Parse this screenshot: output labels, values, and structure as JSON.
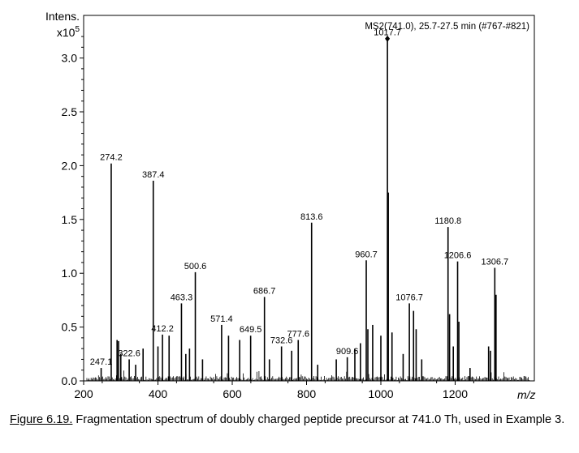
{
  "chart_data": {
    "type": "bar",
    "title": "MS2(741.0), 25.7-27.5 min (#767-#821)",
    "ylabel_line1": "Intens.",
    "ylabel_line2": "x10",
    "ylabel_exponent": "5",
    "xlabel": "m/z",
    "xlim": [
      200,
      1340
    ],
    "ylim": [
      0,
      3.25
    ],
    "x_ticks": [
      200,
      400,
      600,
      800,
      1000,
      1200
    ],
    "y_ticks": [
      0.0,
      0.5,
      1.0,
      1.5,
      2.0,
      2.5,
      3.0
    ],
    "y_tick_labels": [
      "0.0",
      "0.5",
      "1.0",
      "1.5",
      "2.0",
      "2.5",
      "3.0"
    ],
    "grid": false,
    "peaks": [
      {
        "x": 247.1,
        "y": 0.12,
        "label": "247.1"
      },
      {
        "x": 274.2,
        "y": 2.02,
        "label": "274.2"
      },
      {
        "x": 290,
        "y": 0.38
      },
      {
        "x": 294,
        "y": 0.37
      },
      {
        "x": 300,
        "y": 0.25
      },
      {
        "x": 322.6,
        "y": 0.2,
        "label": "322.6"
      },
      {
        "x": 340,
        "y": 0.15
      },
      {
        "x": 360,
        "y": 0.3
      },
      {
        "x": 387.4,
        "y": 1.86,
        "label": "387.4"
      },
      {
        "x": 400,
        "y": 0.32
      },
      {
        "x": 412.2,
        "y": 0.43,
        "label": "412.2"
      },
      {
        "x": 430,
        "y": 0.42
      },
      {
        "x": 463.3,
        "y": 0.72,
        "label": "463.3"
      },
      {
        "x": 475,
        "y": 0.25
      },
      {
        "x": 485,
        "y": 0.3
      },
      {
        "x": 500.6,
        "y": 1.01,
        "label": "500.6"
      },
      {
        "x": 520,
        "y": 0.2
      },
      {
        "x": 571.4,
        "y": 0.52,
        "label": "571.4"
      },
      {
        "x": 590,
        "y": 0.42
      },
      {
        "x": 620,
        "y": 0.38
      },
      {
        "x": 649.5,
        "y": 0.42,
        "label": "649.5"
      },
      {
        "x": 686.7,
        "y": 0.78,
        "label": "686.7"
      },
      {
        "x": 700,
        "y": 0.2
      },
      {
        "x": 732.6,
        "y": 0.32,
        "label": "732.6"
      },
      {
        "x": 760,
        "y": 0.28
      },
      {
        "x": 777.6,
        "y": 0.38,
        "label": "777.6"
      },
      {
        "x": 813.6,
        "y": 1.47,
        "label": "813.6"
      },
      {
        "x": 830,
        "y": 0.15
      },
      {
        "x": 880,
        "y": 0.2
      },
      {
        "x": 909.6,
        "y": 0.22,
        "label": "909.6"
      },
      {
        "x": 930,
        "y": 0.3
      },
      {
        "x": 945,
        "y": 0.35
      },
      {
        "x": 960.7,
        "y": 1.12,
        "label": "960.7"
      },
      {
        "x": 965,
        "y": 0.48
      },
      {
        "x": 978,
        "y": 0.52
      },
      {
        "x": 1000,
        "y": 0.42
      },
      {
        "x": 1017.7,
        "y": 3.18,
        "label": "1017.7"
      },
      {
        "x": 1020,
        "y": 1.75
      },
      {
        "x": 1030,
        "y": 0.45
      },
      {
        "x": 1060,
        "y": 0.25
      },
      {
        "x": 1076.7,
        "y": 0.72,
        "label": "1076.7"
      },
      {
        "x": 1088,
        "y": 0.65
      },
      {
        "x": 1095,
        "y": 0.48
      },
      {
        "x": 1110,
        "y": 0.2
      },
      {
        "x": 1180.8,
        "y": 1.43,
        "label": "1180.8"
      },
      {
        "x": 1185,
        "y": 0.62
      },
      {
        "x": 1195,
        "y": 0.32
      },
      {
        "x": 1206.6,
        "y": 1.11,
        "label": "1206.6"
      },
      {
        "x": 1210,
        "y": 0.55
      },
      {
        "x": 1240,
        "y": 0.12
      },
      {
        "x": 1290,
        "y": 0.32
      },
      {
        "x": 1295,
        "y": 0.28
      },
      {
        "x": 1306.7,
        "y": 1.05,
        "label": "1306.7"
      },
      {
        "x": 1310,
        "y": 0.8
      }
    ]
  },
  "caption": {
    "label": "Figure 6.19.",
    "text": " Fragmentation spectrum of doubly charged peptide precursor at 741.0 Th, used in Example 3."
  }
}
